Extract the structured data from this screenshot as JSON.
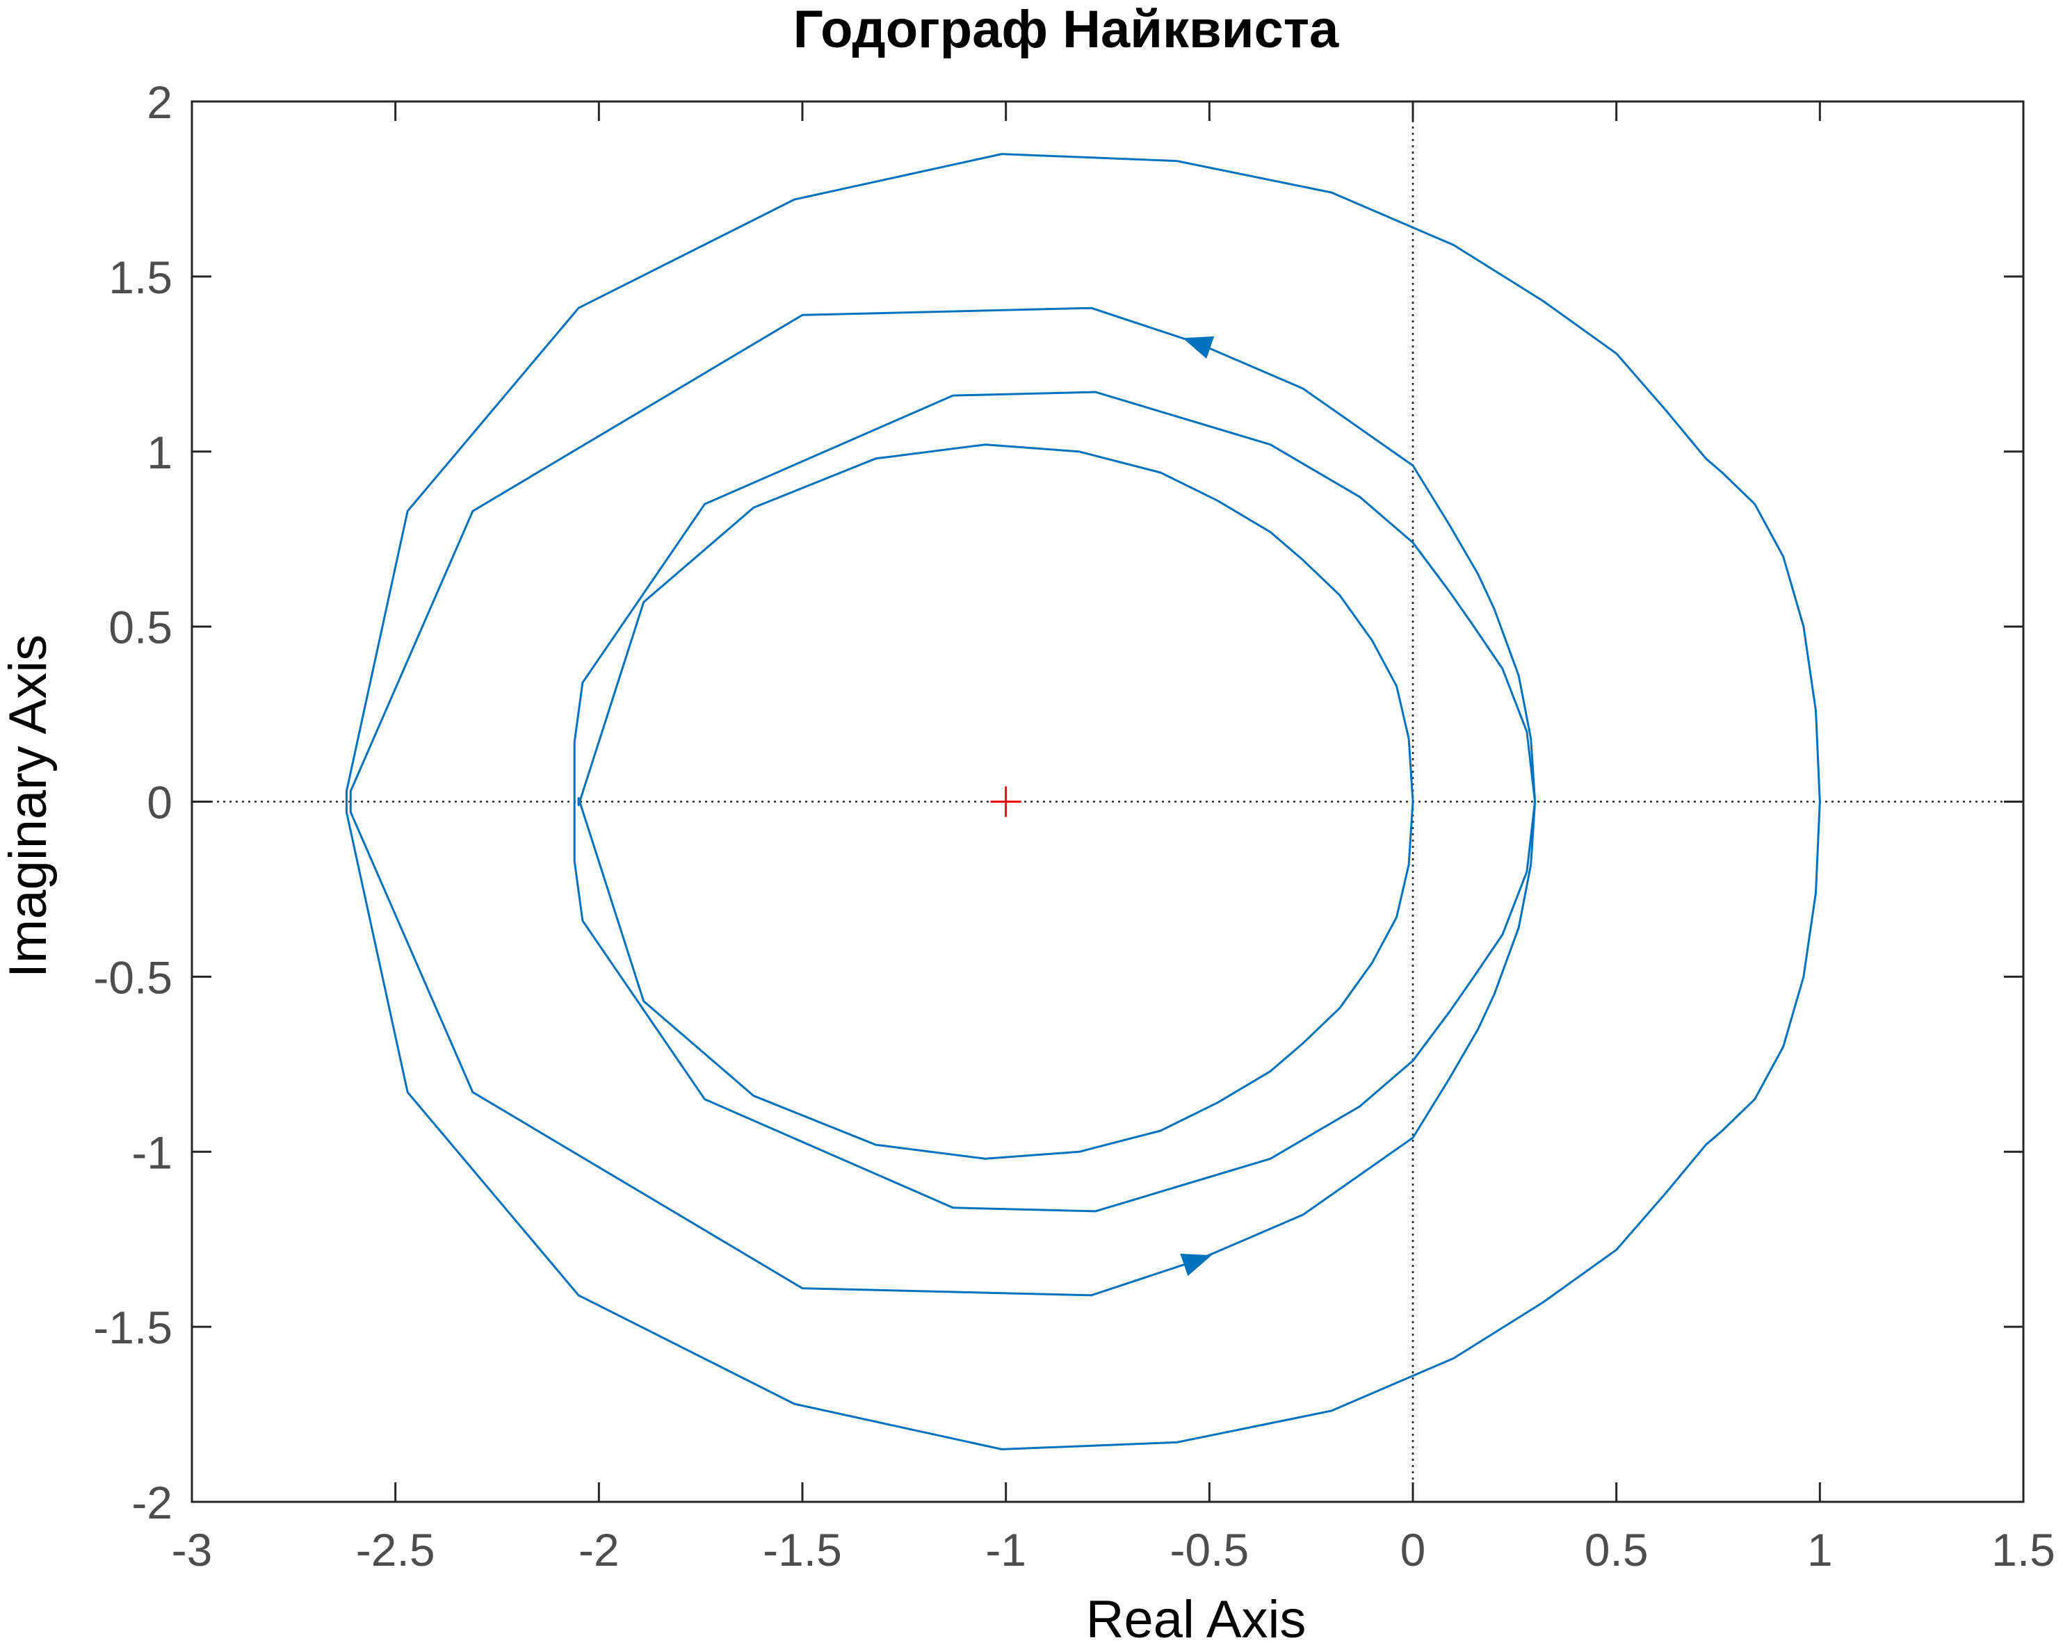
{
  "chart_data": {
    "type": "line",
    "title": "Годограф Найквиста",
    "xlabel": "Real Axis",
    "ylabel": "Imaginary Axis",
    "xlim": [
      -3,
      1.5
    ],
    "ylim": [
      -2,
      2
    ],
    "xticks": [
      -3,
      -2.5,
      -2,
      -1.5,
      -1,
      -0.5,
      0,
      0.5,
      1,
      1.5
    ],
    "yticks": [
      -2,
      -1.5,
      -1,
      -0.5,
      0,
      0.5,
      1,
      1.5,
      2
    ],
    "xtick_labels": [
      "-3",
      "-2.5",
      "-2",
      "-1.5",
      "-1",
      "-0.5",
      "0",
      "0.5",
      "1",
      "1.5"
    ],
    "ytick_labels": [
      "-2",
      "-1.5",
      "-1",
      "-0.5",
      "0",
      "0.5",
      "1",
      "1.5",
      "2"
    ],
    "grid": false,
    "reference_lines": [
      {
        "axis": "x",
        "value": 0,
        "style": "dotted"
      },
      {
        "axis": "y",
        "value": 0,
        "style": "dotted"
      }
    ],
    "critical_point": {
      "x": -1,
      "y": 0,
      "marker": "+",
      "color": "#ff0000"
    },
    "series_color": "#0072bd",
    "series": [
      {
        "x": [
          1.0,
          0.99,
          0.96,
          0.91,
          0.84,
          0.76,
          0.72,
          0.62,
          0.5,
          0.32,
          0.1,
          0.0,
          -0.2,
          -0.58,
          -1.01,
          -1.52,
          -2.05,
          -2.47,
          -2.62,
          -2.62,
          -2.47,
          -2.05,
          -1.52,
          -1.01,
          -0.58,
          -0.2,
          0.0,
          0.1,
          0.32,
          0.5,
          0.62,
          0.72,
          0.76,
          0.84,
          0.91,
          0.96,
          0.99,
          1.0
        ],
        "y": [
          0.0,
          0.26,
          0.5,
          0.7,
          0.85,
          0.94,
          0.98,
          1.12,
          1.28,
          1.43,
          1.59,
          1.64,
          1.74,
          1.83,
          1.85,
          1.72,
          1.41,
          0.83,
          0.03,
          -0.03,
          -0.83,
          -1.41,
          -1.72,
          -1.85,
          -1.83,
          -1.74,
          -1.64,
          -1.59,
          -1.43,
          -1.28,
          -1.12,
          -0.98,
          -0.94,
          -0.85,
          -0.7,
          -0.5,
          -0.26,
          0.0
        ]
      },
      {
        "x": [
          0.3,
          0.29,
          0.26,
          0.2,
          0.16,
          0.09,
          0.0,
          -0.27,
          -0.53,
          -0.79,
          -1.5,
          -2.31,
          -2.61,
          -2.61,
          -2.31,
          -1.5,
          -0.79,
          -0.53,
          -0.27,
          0.0,
          0.09,
          0.16,
          0.2,
          0.26,
          0.29,
          0.3
        ],
        "y": [
          0.0,
          0.18,
          0.36,
          0.55,
          0.65,
          0.79,
          0.96,
          1.18,
          1.31,
          1.41,
          1.39,
          0.83,
          0.03,
          -0.03,
          -0.83,
          -1.39,
          -1.41,
          -1.31,
          -1.18,
          -0.96,
          -0.79,
          -0.65,
          -0.55,
          -0.36,
          -0.18,
          0.0
        ]
      },
      {
        "x": [
          0.3,
          0.28,
          0.22,
          0.15,
          0.09,
          0.0,
          -0.13,
          -0.35,
          -0.78,
          -1.13,
          -1.74,
          -2.04,
          -2.06,
          -2.06,
          -2.04,
          -1.74,
          -1.13,
          -0.78,
          -0.35,
          -0.13,
          0.0,
          0.09,
          0.15,
          0.22,
          0.28,
          0.3
        ],
        "y": [
          0.0,
          0.2,
          0.38,
          0.5,
          0.6,
          0.74,
          0.87,
          1.02,
          1.17,
          1.16,
          0.85,
          0.34,
          0.17,
          -0.17,
          -0.34,
          -0.85,
          -1.16,
          -1.17,
          -1.02,
          -0.87,
          -0.74,
          -0.6,
          -0.5,
          -0.38,
          -0.2,
          0.0
        ]
      },
      {
        "x": [
          0.0,
          -0.01,
          -0.04,
          -0.1,
          -0.18,
          -0.27,
          -0.35,
          -0.48,
          -0.62,
          -0.82,
          -1.05,
          -1.32,
          -1.62,
          -1.89,
          -2.05,
          -2.05,
          -1.89,
          -1.62,
          -1.32,
          -1.05,
          -0.82,
          -0.62,
          -0.48,
          -0.35,
          -0.27,
          -0.18,
          -0.1,
          -0.04,
          -0.01,
          0.0
        ],
        "y": [
          0.0,
          0.18,
          0.33,
          0.46,
          0.59,
          0.69,
          0.77,
          0.86,
          0.94,
          1.0,
          1.02,
          0.98,
          0.84,
          0.57,
          -0.01,
          0.01,
          -0.57,
          -0.84,
          -0.98,
          -1.02,
          -1.0,
          -0.94,
          -0.86,
          -0.77,
          -0.69,
          -0.59,
          -0.46,
          -0.33,
          -0.18,
          0.0
        ]
      }
    ],
    "arrows": [
      {
        "x": -0.53,
        "y": 1.31,
        "direction": "left"
      },
      {
        "x": -0.53,
        "y": -1.31,
        "direction": "right"
      }
    ]
  }
}
